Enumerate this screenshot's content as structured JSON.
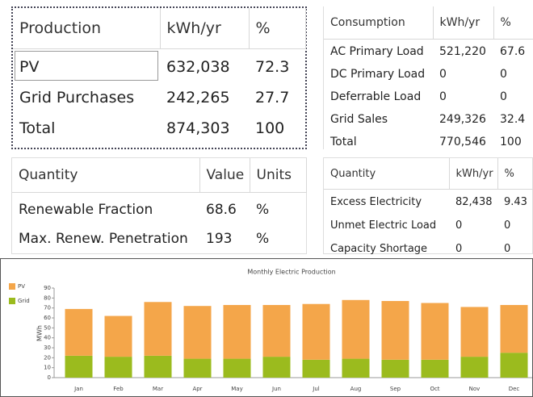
{
  "production": {
    "headers": [
      "Production",
      "kWh/yr",
      "%"
    ],
    "rows": [
      [
        "PV",
        "632,038",
        "72.3"
      ],
      [
        "Grid Purchases",
        "242,265",
        "27.7"
      ],
      [
        "Total",
        "874,303",
        "100"
      ]
    ]
  },
  "consumption": {
    "headers": [
      "Consumption",
      "kWh/yr",
      "%"
    ],
    "rows": [
      [
        "AC Primary Load",
        "521,220",
        "67.6"
      ],
      [
        "DC Primary Load",
        "0",
        "0"
      ],
      [
        "Deferrable Load",
        "0",
        "0"
      ],
      [
        "Grid Sales",
        "249,326",
        "32.4"
      ],
      [
        "Total",
        "770,546",
        "100"
      ]
    ]
  },
  "quantity": {
    "headers": [
      "Quantity",
      "Value",
      "Units"
    ],
    "rows": [
      [
        "Renewable Fraction",
        "68.6",
        "%"
      ],
      [
        "Max. Renew. Penetration",
        "193",
        "%"
      ]
    ]
  },
  "quantity2": {
    "headers": [
      "Quantity",
      "kWh/yr",
      "%"
    ],
    "rows": [
      [
        "Excess Electricity",
        "82,438",
        "9.43"
      ],
      [
        "Unmet Electric Load",
        "0",
        "0"
      ],
      [
        "Capacity Shortage",
        "0",
        "0"
      ]
    ]
  },
  "chart_data": {
    "type": "stacked_bar",
    "title": "Monthly Electric Production",
    "y_label": "MWh",
    "categories": [
      "Jan",
      "Feb",
      "Mar",
      "Apr",
      "May",
      "Jun",
      "Jul",
      "Aug",
      "Sep",
      "Oct",
      "Nov",
      "Dec"
    ],
    "series": [
      {
        "name": "PV",
        "color": "#f4a64a",
        "values": [
          47,
          41,
          54,
          53,
          54,
          52,
          56,
          59,
          59,
          57,
          50,
          48
        ]
      },
      {
        "name": "Grid",
        "color": "#9bbb1e",
        "values": [
          22,
          21,
          22,
          19,
          19,
          21,
          18,
          19,
          18,
          18,
          21,
          25
        ]
      }
    ],
    "ylim": [
      0,
      90
    ],
    "yticks": [
      0,
      10,
      20,
      30,
      40,
      50,
      60,
      70,
      80,
      90
    ]
  }
}
